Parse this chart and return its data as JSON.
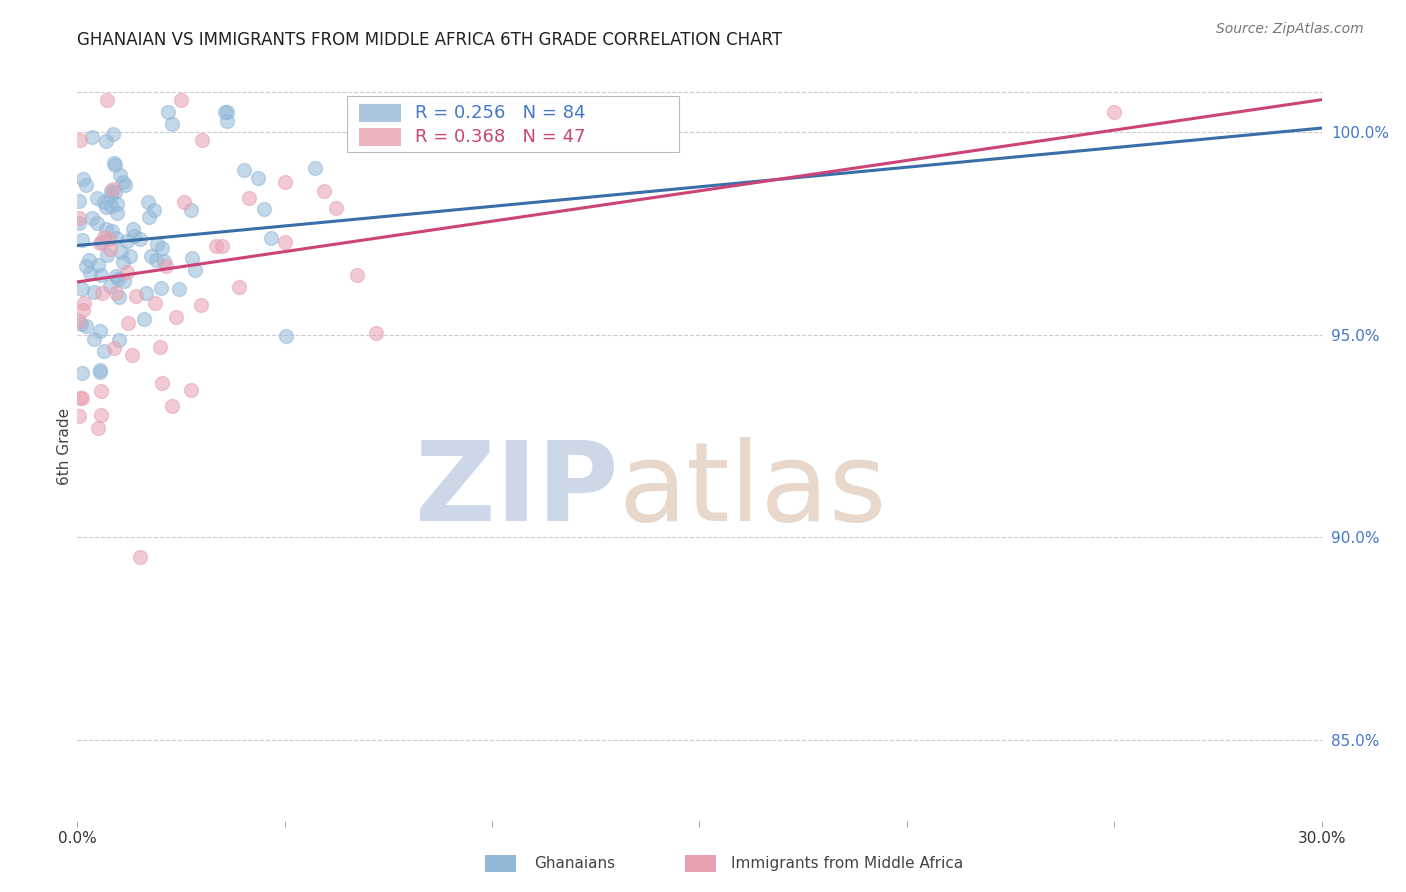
{
  "title": "GHANAIAN VS IMMIGRANTS FROM MIDDLE AFRICA 6TH GRADE CORRELATION CHART",
  "source": "Source: ZipAtlas.com",
  "ylabel": "6th Grade",
  "x_min": 0.0,
  "x_max": 30.0,
  "y_min": 83.0,
  "y_max": 101.5,
  "y_ticks": [
    85.0,
    90.0,
    95.0,
    100.0
  ],
  "blue_R": 0.256,
  "blue_N": 84,
  "pink_R": 0.368,
  "pink_N": 47,
  "blue_color": "#92b8d8",
  "pink_color": "#e8a0b0",
  "blue_line_color": "#3a6ea8",
  "pink_line_color": "#cc4477",
  "watermark_zip_color": "#ccd8e8",
  "watermark_atlas_color": "#e8d8cc",
  "background_color": "#ffffff",
  "grid_color": "#cccccc",
  "right_axis_color": "#4477cc",
  "legend_box_color": "#ccddee",
  "legend_pink_box_color": "#eecccc",
  "title_fontsize": 12,
  "source_fontsize": 10,
  "axis_label_fontsize": 11,
  "tick_fontsize": 11,
  "legend_fontsize": 13,
  "blue_line_y0": 97.2,
  "blue_line_y30": 100.1,
  "pink_line_y0": 96.3,
  "pink_line_y30": 100.8
}
